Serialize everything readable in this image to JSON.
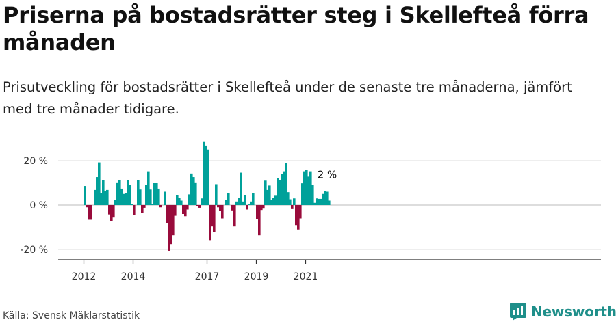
{
  "header": {
    "title": "Priserna på bostadsrätter steg i Skellefteå förra månaden",
    "subtitle": "Prisutveckling för bostadsrätter i Skellefteå under de senaste tre månaderna, jämfört med tre månader tidigare."
  },
  "footer": {
    "source": "Källa: Svensk Mäklarstatistik",
    "brand": "Newsworthy"
  },
  "colors": {
    "positive": "#00a19a",
    "negative": "#990b3b",
    "gridline": "#dddddd",
    "axis": "#333333",
    "brand": "#1f8f8a"
  },
  "chart_data": {
    "type": "bar",
    "title": "Prisutveckling för bostadsrätter i Skellefteå",
    "xlabel": "",
    "ylabel": "",
    "unit": "%",
    "ylim": [
      -22,
      30
    ],
    "yticks": [
      {
        "value": 20,
        "label": "20 %"
      },
      {
        "value": 0,
        "label": "0 %"
      },
      {
        "value": -20,
        "label": "-20 %"
      }
    ],
    "xticks": [
      {
        "index": 0,
        "label": "2012"
      },
      {
        "index": 24,
        "label": "2014"
      },
      {
        "index": 60,
        "label": "2017"
      },
      {
        "index": 84,
        "label": "2019"
      },
      {
        "index": 108,
        "label": "2021"
      }
    ],
    "start": "2012-01",
    "annotation": {
      "index": 118,
      "label": "2 %"
    },
    "values": [
      8.6,
      -1.0,
      -6.6,
      -6.6,
      0,
      6.8,
      12.6,
      19.2,
      5.4,
      11.2,
      6.2,
      6.8,
      -4.2,
      -7.2,
      -5.6,
      2.4,
      10.2,
      11.2,
      7.4,
      5.0,
      5.4,
      11.2,
      9.2,
      0.6,
      -4.4,
      0,
      11.2,
      7.0,
      -3.6,
      -1.2,
      9.2,
      15.2,
      7.0,
      0.6,
      10.0,
      10.0,
      7.4,
      -1.0,
      0,
      6.0,
      -8.0,
      -20.6,
      -17.6,
      -13.6,
      -4.8,
      4.6,
      3.2,
      2.0,
      -4.0,
      -5.0,
      -2.0,
      4.8,
      14.2,
      12.6,
      10.2,
      -0.4,
      -1.2,
      3.0,
      28.4,
      26.8,
      25.0,
      -15.8,
      -9.6,
      -12.0,
      9.4,
      -1.0,
      -2.6,
      -6.0,
      0,
      2.4,
      5.4,
      0,
      -2.4,
      -9.6,
      1.6,
      3.2,
      14.6,
      1.6,
      4.6,
      -2.0,
      0.6,
      1.6,
      5.4,
      0,
      -6.4,
      -13.6,
      -2.2,
      -1.6,
      11.0,
      6.8,
      8.8,
      2.2,
      3.2,
      4.2,
      12.2,
      11.2,
      14.0,
      15.2,
      18.8,
      5.8,
      2.6,
      -1.8,
      3.0,
      -9.0,
      -11.0,
      -6.0,
      9.8,
      15.2,
      16.0,
      12.8,
      15.2,
      9.0,
      1.0,
      3.0,
      2.8,
      2.8,
      5.0,
      6.2,
      6.0,
      2.0
    ]
  }
}
